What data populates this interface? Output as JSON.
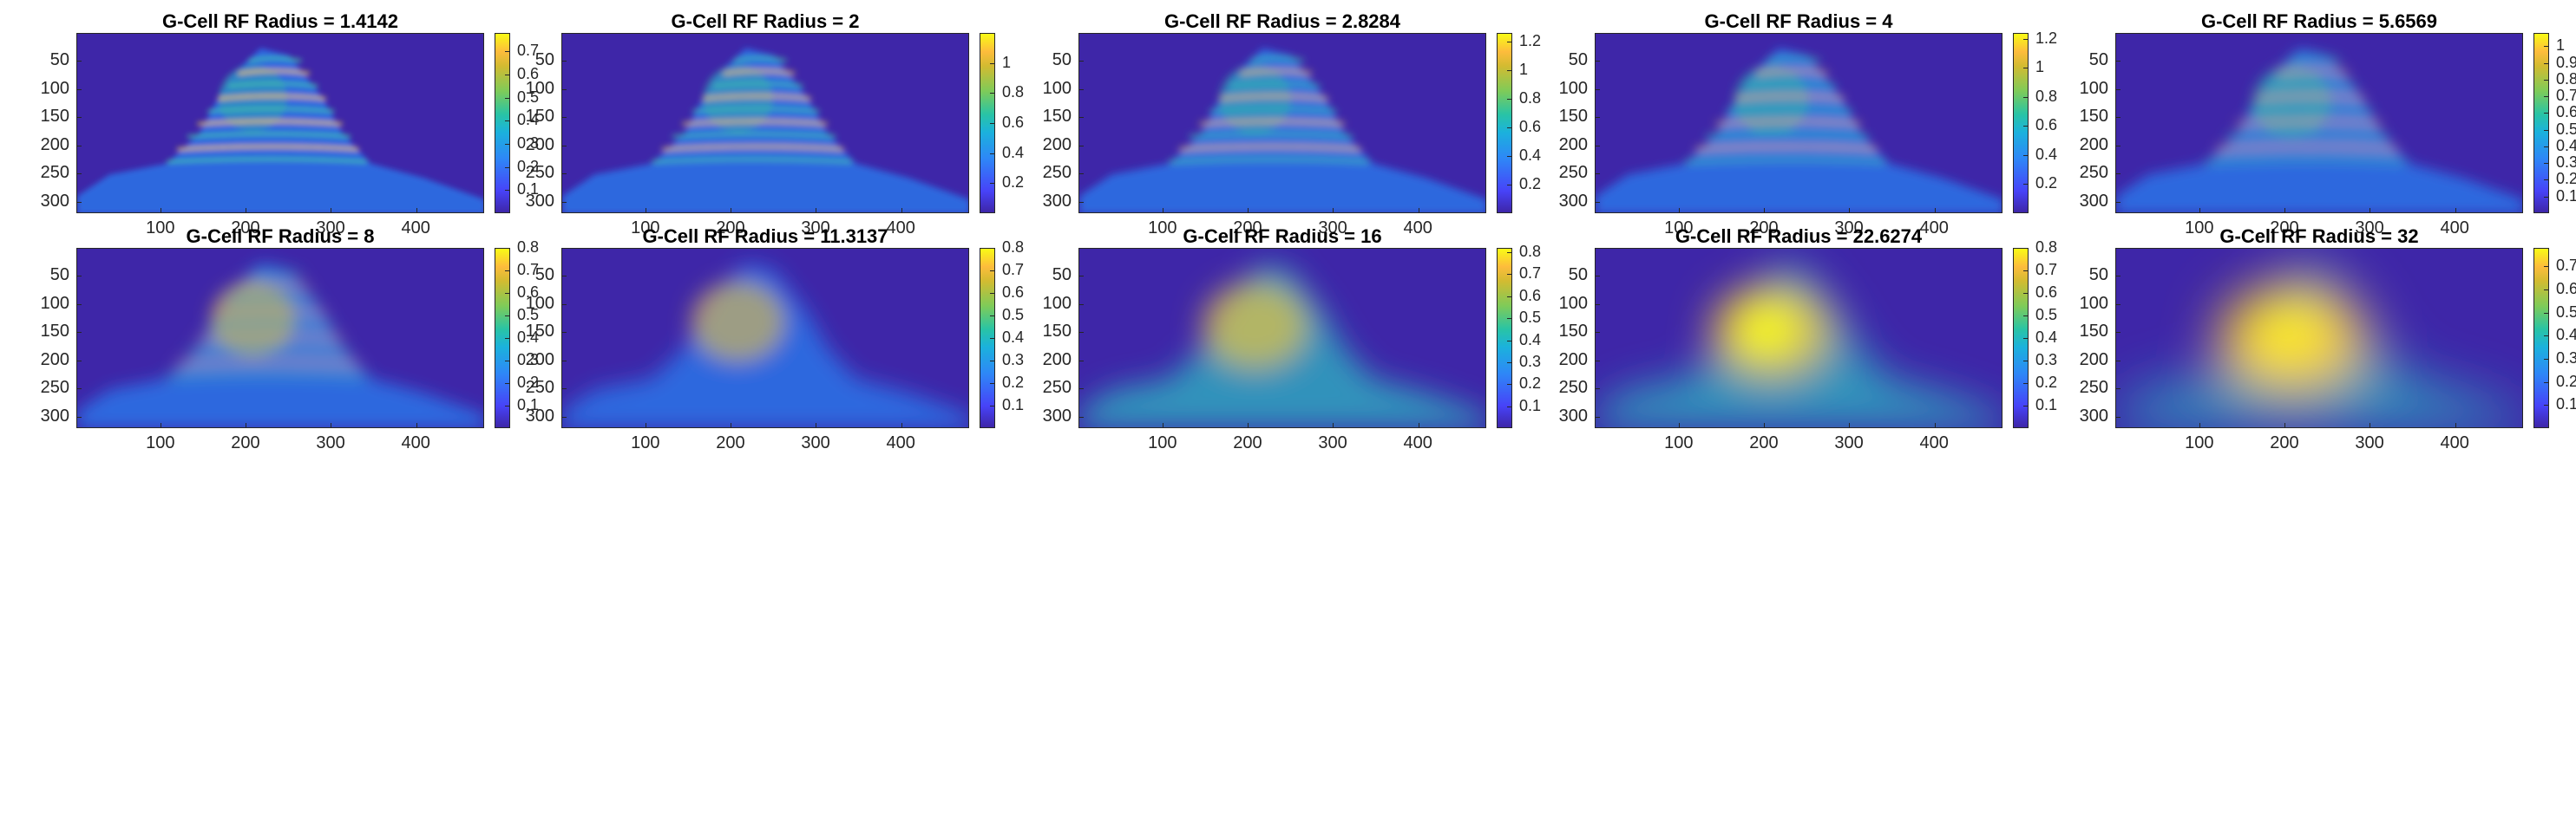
{
  "chart_data": {
    "type": "heatmap",
    "colormap": "parula",
    "layout": "2 rows x 5 columns",
    "x_ticks": [
      100,
      200,
      300,
      400
    ],
    "y_ticks": [
      50,
      100,
      150,
      200,
      250,
      300
    ],
    "x_range": [
      1,
      480
    ],
    "y_range": [
      1,
      320
    ],
    "y_direction": "reversed",
    "panels": [
      {
        "title": "G-Cell RF Radius = 1.4142",
        "radius": 1.4142,
        "clim": [
          0.0,
          0.78
        ],
        "cbar_ticks": [
          0.1,
          0.2,
          0.3,
          0.4,
          0.5,
          0.6,
          0.7
        ]
      },
      {
        "title": "G-Cell RF Radius = 2",
        "radius": 2,
        "clim": [
          0.0,
          1.2
        ],
        "cbar_ticks": [
          0.2,
          0.4,
          0.6,
          0.8,
          1
        ]
      },
      {
        "title": "G-Cell RF Radius = 2.8284",
        "radius": 2.8284,
        "clim": [
          0.0,
          1.26
        ],
        "cbar_ticks": [
          0.2,
          0.4,
          0.6,
          0.8,
          1,
          1.2
        ]
      },
      {
        "title": "G-Cell RF Radius = 4",
        "radius": 4,
        "clim": [
          0.0,
          1.24
        ],
        "cbar_ticks": [
          0.2,
          0.4,
          0.6,
          0.8,
          1,
          1.2
        ]
      },
      {
        "title": "G-Cell RF Radius = 5.6569",
        "radius": 5.6569,
        "clim": [
          0.0,
          1.08
        ],
        "cbar_ticks": [
          0.1,
          0.2,
          0.3,
          0.4,
          0.5,
          0.6,
          0.7,
          0.8,
          0.9,
          1
        ]
      },
      {
        "title": "G-Cell RF Radius = 8",
        "radius": 8,
        "clim": [
          0.0,
          0.8
        ],
        "cbar_ticks": [
          0.1,
          0.2,
          0.3,
          0.4,
          0.5,
          0.6,
          0.7,
          0.8
        ]
      },
      {
        "title": "G-Cell RF Radius = 11.3137",
        "radius": 11.3137,
        "clim": [
          0.0,
          0.8
        ],
        "cbar_ticks": [
          0.1,
          0.2,
          0.3,
          0.4,
          0.5,
          0.6,
          0.7,
          0.8
        ]
      },
      {
        "title": "G-Cell RF Radius = 16",
        "radius": 16,
        "clim": [
          0.0,
          0.82
        ],
        "cbar_ticks": [
          0.1,
          0.2,
          0.3,
          0.4,
          0.5,
          0.6,
          0.7,
          0.8
        ]
      },
      {
        "title": "G-Cell RF Radius = 22.6274",
        "radius": 22.6274,
        "clim": [
          0.0,
          0.8
        ],
        "cbar_ticks": [
          0.1,
          0.2,
          0.3,
          0.4,
          0.5,
          0.6,
          0.7,
          0.8
        ]
      },
      {
        "title": "G-Cell RF Radius = 32",
        "radius": 32,
        "clim": [
          0.0,
          0.78
        ],
        "cbar_ticks": [
          0.1,
          0.2,
          0.3,
          0.4,
          0.5,
          0.6,
          0.7
        ]
      }
    ]
  }
}
